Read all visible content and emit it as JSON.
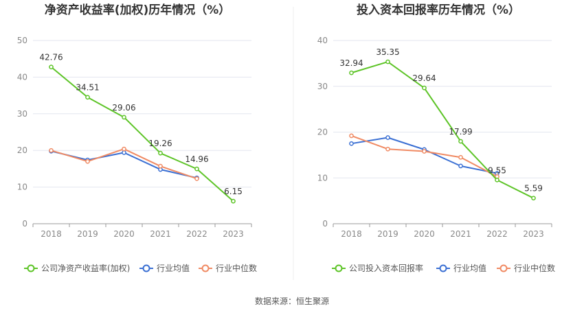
{
  "colors": {
    "company": "#5dc427",
    "industry_avg": "#3a6fd3",
    "industry_median": "#f08a63",
    "grid": "#e3e6ef",
    "axis": "#999999",
    "divider": "#eeeeee"
  },
  "chart_data": [
    {
      "type": "line",
      "title": "净资产收益率(加权)历年情况（%）",
      "xlabel": "",
      "ylabel": "",
      "x": [
        "2018",
        "2019",
        "2020",
        "2021",
        "2022",
        "2023"
      ],
      "ylim": [
        0,
        50
      ],
      "yticks": [
        0,
        10,
        20,
        30,
        40,
        50
      ],
      "grid": true,
      "legend_position": "bottom",
      "series": [
        {
          "name": "公司净资产收益率(加权)",
          "color_key": "company",
          "values": [
            42.76,
            34.51,
            29.06,
            19.26,
            14.96,
            6.15
          ],
          "labels": [
            "42.76",
            "34.51",
            "29.06",
            "19.26",
            "14.96",
            "6.15"
          ]
        },
        {
          "name": "行业均值",
          "color_key": "industry_avg",
          "values": [
            19.8,
            17.4,
            19.4,
            14.8,
            12.5,
            null
          ]
        },
        {
          "name": "行业中位数",
          "color_key": "industry_median",
          "values": [
            20.0,
            17.0,
            20.4,
            15.7,
            12.3,
            null
          ]
        }
      ]
    },
    {
      "type": "line",
      "title": "投入资本回报率历年情况（%）",
      "xlabel": "",
      "ylabel": "",
      "x": [
        "2018",
        "2019",
        "2020",
        "2021",
        "2022",
        "2023"
      ],
      "ylim": [
        0,
        40
      ],
      "yticks": [
        0,
        10,
        20,
        30,
        40
      ],
      "grid": true,
      "legend_position": "bottom",
      "series": [
        {
          "name": "公司投入资本回报率",
          "color_key": "company",
          "values": [
            32.94,
            35.35,
            29.64,
            17.99,
            9.55,
            5.59
          ],
          "labels": [
            "32.94",
            "35.35",
            "29.64",
            "17.99",
            "9.55",
            "5.59"
          ]
        },
        {
          "name": "行业均值",
          "color_key": "industry_avg",
          "values": [
            17.5,
            18.8,
            16.2,
            12.6,
            11.0,
            null
          ]
        },
        {
          "name": "行业中位数",
          "color_key": "industry_median",
          "values": [
            19.2,
            16.3,
            15.8,
            14.5,
            10.3,
            null
          ]
        }
      ]
    }
  ],
  "footer": {
    "source": "数据来源：恒生聚源"
  }
}
